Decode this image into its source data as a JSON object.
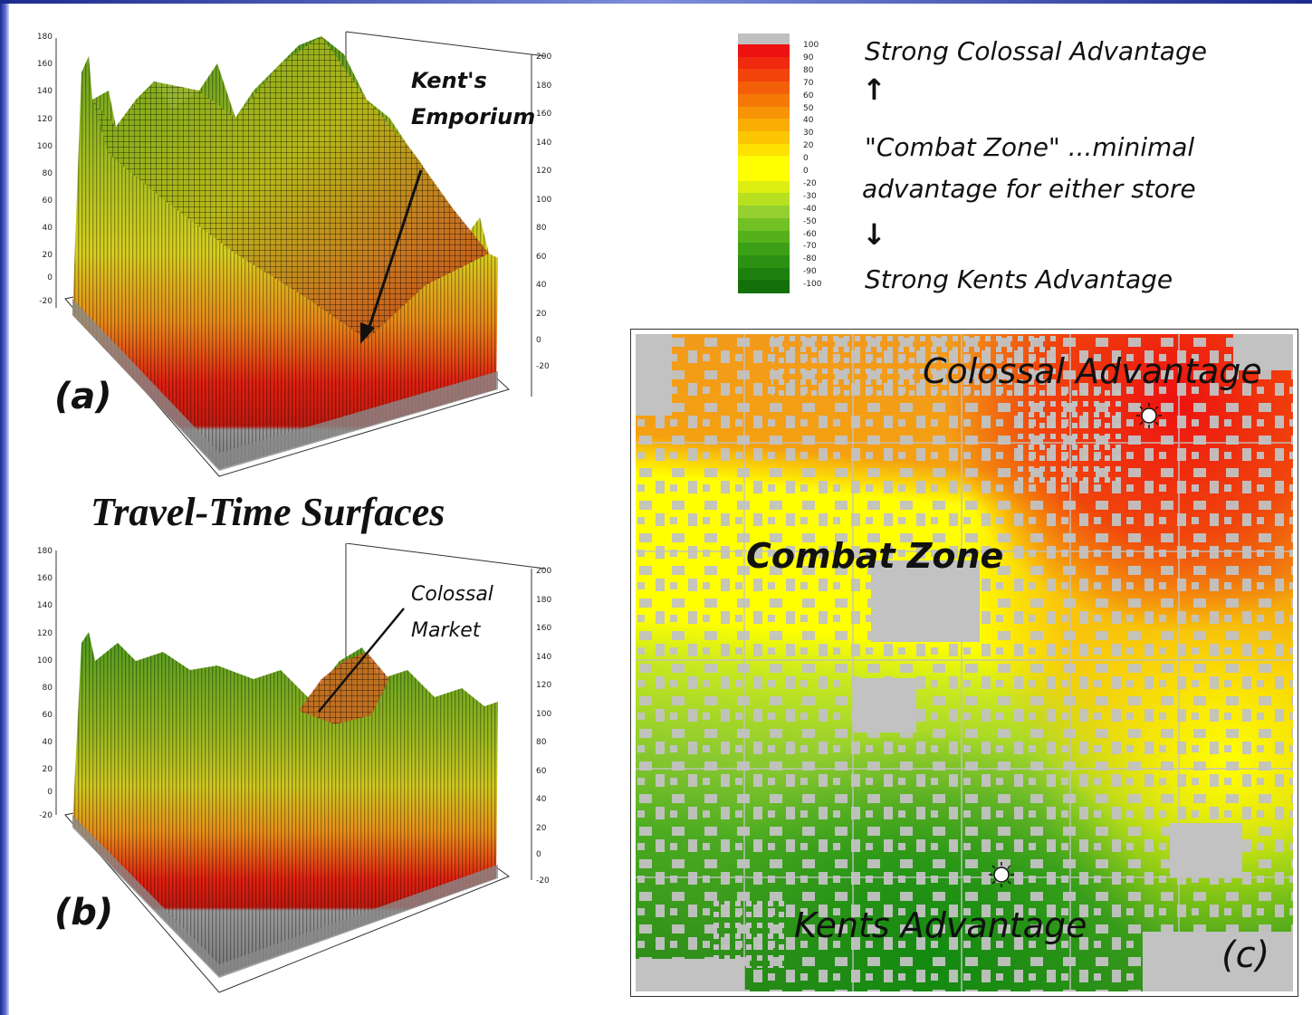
{
  "center_title": "Travel-Time Surfaces",
  "panel_a": {
    "letter": "(a)",
    "label_line1": "Kent's",
    "label_line2": "Emporium",
    "left_ticks": [
      "180",
      "160",
      "140",
      "120",
      "100",
      "80",
      "60",
      "40",
      "20",
      "0",
      "-20"
    ],
    "right_ticks": [
      "200",
      "180",
      "160",
      "140",
      "120",
      "100",
      "80",
      "60",
      "40",
      "20",
      "0",
      "-20"
    ]
  },
  "panel_b": {
    "letter": "(b)",
    "label_line1": "Colossal",
    "label_line2": "Market",
    "left_ticks": [
      "180",
      "160",
      "140",
      "120",
      "100",
      "80",
      "60",
      "40",
      "20",
      "0",
      "-20"
    ],
    "right_ticks": [
      "200",
      "180",
      "160",
      "140",
      "120",
      "100",
      "80",
      "60",
      "40",
      "20",
      "0",
      "-20"
    ]
  },
  "legend": {
    "values": [
      "100",
      "90",
      "80",
      "70",
      "60",
      "50",
      "40",
      "30",
      "20",
      "0",
      "0",
      "-20",
      "-30",
      "-40",
      "-50",
      "-60",
      "-70",
      "-80",
      "-90",
      "-100"
    ],
    "colors": [
      "#ee1111",
      "#f02a0e",
      "#f2440c",
      "#f45f0a",
      "#f67908",
      "#f89306",
      "#faad04",
      "#fcc702",
      "#fee100",
      "#ffff00",
      "#ffff00",
      "#dcef10",
      "#b8e020",
      "#95d030",
      "#72c024",
      "#55b01c",
      "#3ca016",
      "#2c9012",
      "#1e800e",
      "#14700a"
    ],
    "strong_colossal": "Strong Colossal Advantage",
    "up_arrow": "↑",
    "combat_line1": "\"Combat Zone\" ...minimal",
    "combat_line2": "advantage for either store",
    "down_arrow": "↓",
    "strong_kents": "Strong Kents Advantage"
  },
  "panel_c": {
    "letter": "(c)",
    "colossal_label": "Colossal Advantage",
    "combat_label": "Combat Zone",
    "kents_label": "Kents Advantage"
  },
  "colors": {
    "surface_red": "#e02010",
    "surface_orange": "#e8801a",
    "surface_yellow": "#e8e820",
    "surface_green": "#4a9a20",
    "base_gray": "#9a9a9a"
  }
}
